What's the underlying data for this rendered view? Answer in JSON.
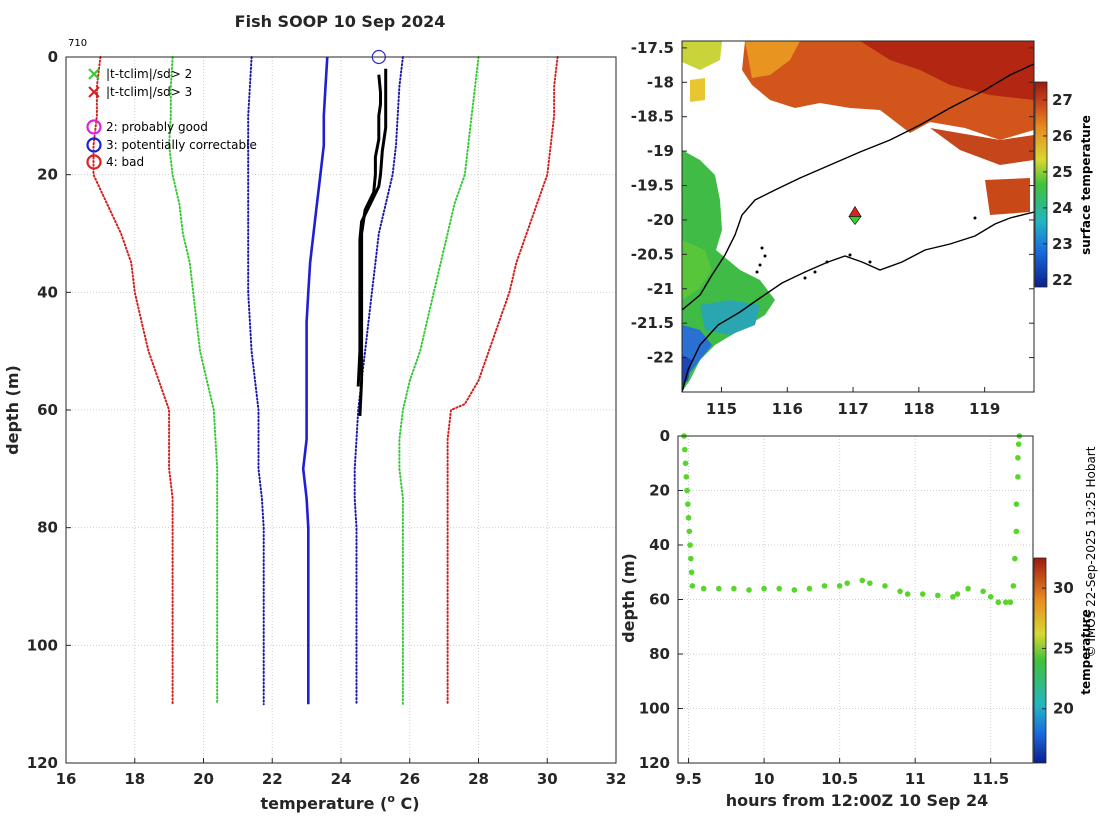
{
  "title": "Fish SOOP 10 Sep 2024",
  "credit": "© IMOS 22-Sep-2025 13:25 Hobart",
  "colors": {
    "red": "#d32020",
    "green": "#36c936",
    "blue_dotted": "#1a1aa8",
    "blue": "#1f1fd6",
    "black": "#000000",
    "qc_circle": "#2b2bd0"
  },
  "chart_data": [
    {
      "id": "profile",
      "type": "line",
      "title": "Fish SOOP 10 Sep 2024",
      "profile_id": "710",
      "xlabel": "temperature (",
      "xlabel_sup": "o",
      "xlabel_end": " C)",
      "ylabel": "depth (m)",
      "xlim": [
        16,
        32
      ],
      "ylim": [
        0,
        120
      ],
      "xticks": [
        "16",
        "18",
        "20",
        "22",
        "24",
        "26",
        "28",
        "30",
        "32"
      ],
      "yticks": [
        "0",
        "20",
        "40",
        "60",
        "80",
        "100",
        "120"
      ],
      "legend": [
        {
          "symbol": "x",
          "color": "#36c936",
          "label": "|t-tclim|/sd> 2"
        },
        {
          "symbol": "x",
          "color": "#d32020",
          "label": "|t-tclim|/sd> 3"
        },
        {
          "symbol": "circle",
          "color": "#e020e0",
          "label": "2: probably good"
        },
        {
          "symbol": "circle",
          "color": "#1f1fd6",
          "label": "3: potentially correctable"
        },
        {
          "symbol": "circle",
          "color": "#e02020",
          "label": "4: bad"
        }
      ],
      "series": [
        {
          "name": "clim -3sd",
          "style": "dotted",
          "color": "#d32020",
          "points": [
            [
              17,
              0
            ],
            [
              16.9,
              5
            ],
            [
              16.9,
              10
            ],
            [
              16.8,
              15
            ],
            [
              16.8,
              20
            ],
            [
              17.2,
              25
            ],
            [
              17.6,
              30
            ],
            [
              17.9,
              35
            ],
            [
              18,
              40
            ],
            [
              18.2,
              45
            ],
            [
              18.4,
              50
            ],
            [
              18.7,
              55
            ],
            [
              19,
              60
            ],
            [
              19,
              65
            ],
            [
              19,
              70
            ],
            [
              19.1,
              75
            ],
            [
              19.1,
              80
            ],
            [
              19.1,
              90
            ],
            [
              19.1,
              100
            ],
            [
              19.1,
              110
            ]
          ]
        },
        {
          "name": "clim -2sd",
          "style": "dotted",
          "color": "#36c936",
          "points": [
            [
              19.1,
              0
            ],
            [
              19.05,
              5
            ],
            [
              19.05,
              10
            ],
            [
              19,
              15
            ],
            [
              19.1,
              20
            ],
            [
              19.3,
              25
            ],
            [
              19.4,
              30
            ],
            [
              19.6,
              35
            ],
            [
              19.7,
              40
            ],
            [
              19.8,
              45
            ],
            [
              19.9,
              50
            ],
            [
              20.1,
              55
            ],
            [
              20.3,
              60
            ],
            [
              20.35,
              65
            ],
            [
              20.4,
              70
            ],
            [
              20.4,
              80
            ],
            [
              20.4,
              90
            ],
            [
              20.4,
              100
            ],
            [
              20.4,
              110
            ]
          ]
        },
        {
          "name": "clim -1sd",
          "style": "dotted",
          "color": "#1a1aa8",
          "points": [
            [
              21.4,
              0
            ],
            [
              21.3,
              10
            ],
            [
              21.3,
              20
            ],
            [
              21.3,
              30
            ],
            [
              21.3,
              40
            ],
            [
              21.4,
              50
            ],
            [
              21.6,
              60
            ],
            [
              21.6,
              70
            ],
            [
              21.7,
              75
            ],
            [
              21.75,
              80
            ],
            [
              21.75,
              90
            ],
            [
              21.75,
              100
            ],
            [
              21.75,
              110
            ]
          ]
        },
        {
          "name": "clim mean",
          "style": "solid",
          "color": "#1f1fd6",
          "points": [
            [
              23.6,
              0
            ],
            [
              23.55,
              5
            ],
            [
              23.5,
              10
            ],
            [
              23.5,
              15
            ],
            [
              23.4,
              20
            ],
            [
              23.3,
              25
            ],
            [
              23.2,
              30
            ],
            [
              23.1,
              35
            ],
            [
              23.05,
              40
            ],
            [
              23,
              45
            ],
            [
              23,
              50
            ],
            [
              23,
              55
            ],
            [
              23,
              60
            ],
            [
              23,
              65
            ],
            [
              22.9,
              70
            ],
            [
              23,
              75
            ],
            [
              23.05,
              80
            ],
            [
              23.05,
              90
            ],
            [
              23.05,
              100
            ],
            [
              23.05,
              110
            ]
          ]
        },
        {
          "name": "clim +1sd",
          "style": "dotted",
          "color": "#1a1aa8",
          "points": [
            [
              25.8,
              0
            ],
            [
              25.7,
              5
            ],
            [
              25.65,
              10
            ],
            [
              25.6,
              15
            ],
            [
              25.5,
              20
            ],
            [
              25.3,
              25
            ],
            [
              25.1,
              30
            ],
            [
              25,
              35
            ],
            [
              24.9,
              40
            ],
            [
              24.8,
              45
            ],
            [
              24.7,
              50
            ],
            [
              24.6,
              55
            ],
            [
              24.5,
              60
            ],
            [
              24.45,
              65
            ],
            [
              24.4,
              70
            ],
            [
              24.4,
              75
            ],
            [
              24.45,
              80
            ],
            [
              24.45,
              90
            ],
            [
              24.45,
              100
            ],
            [
              24.45,
              110
            ]
          ]
        },
        {
          "name": "clim +2sd",
          "style": "dotted",
          "color": "#36c936",
          "points": [
            [
              28,
              0
            ],
            [
              27.9,
              5
            ],
            [
              27.8,
              10
            ],
            [
              27.7,
              15
            ],
            [
              27.6,
              20
            ],
            [
              27.3,
              25
            ],
            [
              27.1,
              30
            ],
            [
              26.9,
              35
            ],
            [
              26.7,
              40
            ],
            [
              26.5,
              45
            ],
            [
              26.3,
              50
            ],
            [
              26,
              55
            ],
            [
              25.8,
              60
            ],
            [
              25.7,
              65
            ],
            [
              25.7,
              70
            ],
            [
              25.8,
              75
            ],
            [
              25.8,
              80
            ],
            [
              25.8,
              90
            ],
            [
              25.8,
              100
            ],
            [
              25.8,
              110
            ]
          ]
        },
        {
          "name": "clim +3sd",
          "style": "dotted",
          "color": "#d32020",
          "points": [
            [
              30.3,
              0
            ],
            [
              30.2,
              5
            ],
            [
              30.2,
              10
            ],
            [
              30.1,
              15
            ],
            [
              30,
              20
            ],
            [
              29.7,
              25
            ],
            [
              29.4,
              30
            ],
            [
              29.1,
              35
            ],
            [
              28.9,
              40
            ],
            [
              28.6,
              45
            ],
            [
              28.3,
              50
            ],
            [
              28,
              55
            ],
            [
              27.6,
              59
            ],
            [
              27.2,
              60
            ],
            [
              27.1,
              65
            ],
            [
              27.1,
              70
            ],
            [
              27.1,
              75
            ],
            [
              27.1,
              80
            ],
            [
              27.1,
              90
            ],
            [
              27.1,
              100
            ],
            [
              27.1,
              110
            ]
          ]
        },
        {
          "name": "observed A",
          "style": "solid",
          "color": "#000000",
          "width": 3,
          "points": [
            [
              25.1,
              3
            ],
            [
              25.15,
              6
            ],
            [
              25.15,
              8
            ],
            [
              25.1,
              10
            ],
            [
              25.1,
              14
            ],
            [
              25,
              17
            ],
            [
              25,
              20
            ],
            [
              24.95,
              23
            ],
            [
              24.7,
              26
            ],
            [
              24.6,
              30
            ],
            [
              24.6,
              40
            ],
            [
              24.6,
              50
            ],
            [
              24.6,
              55
            ],
            [
              24.55,
              61
            ]
          ]
        },
        {
          "name": "observed B",
          "style": "solid",
          "color": "#000000",
          "width": 3,
          "points": [
            [
              25.3,
              2
            ],
            [
              25.3,
              6
            ],
            [
              25.3,
              12
            ],
            [
              25.2,
              16
            ],
            [
              25.15,
              20
            ],
            [
              25.1,
              22
            ],
            [
              24.85,
              25
            ],
            [
              24.6,
              28
            ],
            [
              24.55,
              31
            ],
            [
              24.55,
              40
            ],
            [
              24.55,
              50
            ],
            [
              24.5,
              56
            ]
          ]
        }
      ],
      "qc_marker": {
        "x": 25.1,
        "y": 0,
        "flag": "3"
      }
    },
    {
      "id": "map",
      "type": "heatmap",
      "xlim": [
        114.4,
        119.75
      ],
      "ylim": [
        -22.5,
        -17.4
      ],
      "xticks": [
        "115",
        "116",
        "117",
        "118",
        "119"
      ],
      "yticks": [
        "-17.5",
        "-18",
        "-18.5",
        "-19",
        "-19.5",
        "-20",
        "-20.5",
        "-21",
        "-21.5",
        "-22"
      ],
      "colorbar": {
        "label": "surface temperature",
        "ticks": [
          "22",
          "23",
          "24",
          "25",
          "26",
          "27"
        ],
        "range": [
          21.8,
          27.5
        ]
      },
      "station": {
        "lon": 117.03,
        "lat": -19.95
      }
    },
    {
      "id": "track",
      "type": "scatter",
      "xlabel": "hours from 12:00Z 10 Sep 24",
      "ylabel": "depth (m)",
      "xlim": [
        9.43,
        11.78
      ],
      "ylim": [
        0,
        120
      ],
      "xticks": [
        "9.5",
        "10",
        "10.5",
        "11",
        "11.5"
      ],
      "yticks": [
        "0",
        "20",
        "40",
        "60",
        "80",
        "100",
        "120"
      ],
      "colorbar": {
        "label": "temperature",
        "ticks": [
          "20",
          "25",
          "30"
        ],
        "range": [
          15.5,
          32.5
        ]
      },
      "points": [
        [
          9.47,
          0
        ],
        [
          9.475,
          5
        ],
        [
          9.48,
          10
        ],
        [
          9.485,
          15
        ],
        [
          9.49,
          20
        ],
        [
          9.495,
          25
        ],
        [
          9.5,
          30
        ],
        [
          9.505,
          35
        ],
        [
          9.51,
          40
        ],
        [
          9.515,
          45
        ],
        [
          9.52,
          50
        ],
        [
          9.525,
          55
        ],
        [
          9.6,
          56
        ],
        [
          9.7,
          56
        ],
        [
          9.8,
          56
        ],
        [
          9.9,
          56.5
        ],
        [
          10,
          56
        ],
        [
          10.1,
          56
        ],
        [
          10.2,
          56.5
        ],
        [
          10.3,
          56
        ],
        [
          10.4,
          55
        ],
        [
          10.5,
          55
        ],
        [
          10.55,
          54
        ],
        [
          10.65,
          53
        ],
        [
          10.7,
          54
        ],
        [
          10.8,
          55
        ],
        [
          10.9,
          57
        ],
        [
          10.95,
          58
        ],
        [
          11.05,
          58
        ],
        [
          11.15,
          58.5
        ],
        [
          11.25,
          59
        ],
        [
          11.28,
          58
        ],
        [
          11.35,
          56
        ],
        [
          11.45,
          57
        ],
        [
          11.5,
          59
        ],
        [
          11.55,
          61
        ],
        [
          11.6,
          61
        ],
        [
          11.63,
          61
        ],
        [
          11.65,
          55
        ],
        [
          11.66,
          45
        ],
        [
          11.67,
          35
        ],
        [
          11.67,
          25
        ],
        [
          11.68,
          15
        ],
        [
          11.68,
          8
        ],
        [
          11.685,
          3
        ],
        [
          11.69,
          0
        ]
      ]
    }
  ]
}
